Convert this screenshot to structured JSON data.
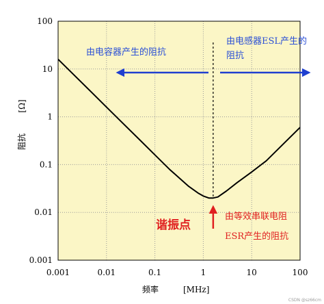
{
  "chart_data": {
    "type": "line",
    "x_scale": "log",
    "y_scale": "log",
    "xlim": [
      0.001,
      100
    ],
    "ylim": [
      0.001,
      100
    ],
    "xticks": [
      "0.001",
      "0.01",
      "0.1",
      "1",
      "10",
      "100"
    ],
    "yticks": [
      "100",
      "10",
      "1",
      "0.1",
      "0.01",
      "0.001"
    ],
    "xlabel": "频率",
    "xlabel_unit": "[MHz]",
    "ylabel": "阻抗",
    "ylabel_unit": "[Ω]",
    "grid": true,
    "series": [
      {
        "x": [
          0.001,
          0.002,
          0.005,
          0.01,
          0.02,
          0.05,
          0.1,
          0.2,
          0.5,
          0.8,
          1,
          1.3,
          1.6,
          2,
          3,
          5,
          10,
          20,
          50,
          100
        ],
        "y": [
          16,
          8,
          3.2,
          1.6,
          0.8,
          0.32,
          0.16,
          0.08,
          0.035,
          0.025,
          0.022,
          0.02,
          0.02,
          0.021,
          0.028,
          0.042,
          0.07,
          0.12,
          0.3,
          0.6
        ]
      }
    ],
    "resonance_x": 1.6,
    "annotations": {
      "capacitor_region": "由电容器产生的阻抗",
      "inductor_region_line1": "由电感器ESL产生的",
      "inductor_region_line2": "阻抗",
      "resonance_point": "谐振点",
      "esr_line1": "由等效串联电阻",
      "esr_line2": "ESR产生的阻抗"
    },
    "colors": {
      "plot_background": "#fbf6c6",
      "grid": "#9a9a9a",
      "curve": "#000000",
      "arrow_blue": "#1f3fd0",
      "annotation_red": "#e02020"
    }
  },
  "watermark": "CSDN @sz66cm"
}
